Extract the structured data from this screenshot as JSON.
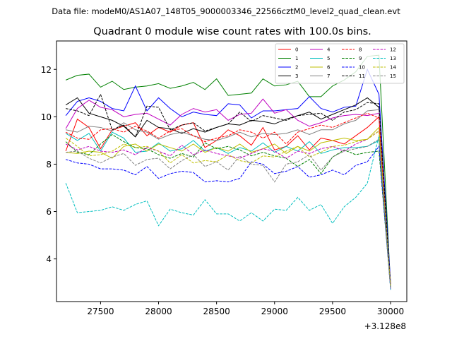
{
  "figure": {
    "suptitle": "Data file: modeM0/AS1A07_148T05_9000003346_22566cztM0_level2_quad_clean.evt",
    "x_offset_label": "+3.128e8"
  },
  "chart_data": {
    "type": "line",
    "title": "Quadrant 0 module wise count rates with 100.0s bins.",
    "xlabel": "",
    "ylabel": "",
    "x_offset": 312800000,
    "xlim": [
      27120,
      30140
    ],
    "ylim": [
      2.2,
      13.2
    ],
    "x_ticks": [
      27500,
      28000,
      28500,
      29000,
      29500,
      30000
    ],
    "x_tick_labels": [
      "27500",
      "28000",
      "28500",
      "29000",
      "29500",
      "30000"
    ],
    "y_ticks": [
      4,
      6,
      8,
      10,
      12
    ],
    "y_tick_labels": [
      "4",
      "6",
      "8",
      "10",
      "12"
    ],
    "grid": false,
    "legend_position": "top-right",
    "x": [
      27200,
      27300,
      27400,
      27500,
      27600,
      27700,
      27800,
      27900,
      28000,
      28100,
      28200,
      28300,
      28400,
      28500,
      28600,
      28700,
      28800,
      28900,
      29000,
      29100,
      29200,
      29300,
      29400,
      29500,
      29600,
      29700,
      29800,
      29900,
      30000
    ],
    "series": [
      {
        "name": "0",
        "color": "#ff0000",
        "dash": "solid",
        "values": [
          8.55,
          9.9,
          9.55,
          8.65,
          9.45,
          9.6,
          9.75,
          9.2,
          9.55,
          9.35,
          9.65,
          9.75,
          8.7,
          9.0,
          9.45,
          9.2,
          8.8,
          9.55,
          8.6,
          8.75,
          9.2,
          8.6,
          9.1,
          9.0,
          8.85,
          9.2,
          9.55,
          10.0,
          2.9
        ]
      },
      {
        "name": "1",
        "color": "#008000",
        "dash": "solid",
        "values": [
          11.55,
          11.75,
          11.8,
          11.25,
          11.5,
          11.15,
          11.25,
          11.3,
          11.4,
          11.2,
          11.3,
          11.45,
          11.15,
          11.6,
          10.9,
          10.95,
          11.0,
          11.6,
          11.3,
          11.35,
          11.5,
          10.85,
          10.85,
          11.3,
          11.55,
          11.9,
          12.55,
          12.6,
          2.85
        ]
      },
      {
        "name": "2",
        "color": "#0000ff",
        "dash": "solid",
        "values": [
          10.05,
          10.65,
          10.8,
          10.65,
          10.35,
          10.25,
          11.3,
          10.25,
          10.8,
          10.35,
          10.0,
          10.2,
          10.1,
          10.05,
          10.55,
          10.5,
          9.95,
          10.25,
          10.25,
          10.3,
          10.35,
          10.85,
          10.35,
          10.2,
          10.4,
          10.45,
          12.0,
          10.95,
          3.0
        ]
      },
      {
        "name": "3",
        "color": "#000000",
        "dash": "solid",
        "values": [
          10.5,
          10.8,
          10.15,
          10.0,
          9.85,
          9.6,
          9.15,
          9.85,
          9.55,
          9.5,
          9.3,
          9.5,
          9.35,
          9.55,
          9.7,
          9.65,
          9.85,
          9.8,
          9.7,
          9.9,
          10.05,
          10.2,
          9.9,
          10.1,
          10.3,
          10.5,
          10.8,
          10.4,
          2.8
        ]
      },
      {
        "name": "4",
        "color": "#bf00bf",
        "dash": "solid",
        "values": [
          9.5,
          10.35,
          10.7,
          10.4,
          10.3,
          10.0,
          10.1,
          10.15,
          9.9,
          9.65,
          10.1,
          10.35,
          10.2,
          10.3,
          9.85,
          10.1,
          10.15,
          10.75,
          10.15,
          10.3,
          9.85,
          9.6,
          9.75,
          9.95,
          10.05,
          10.1,
          10.05,
          10.15,
          2.85
        ]
      },
      {
        "name": "5",
        "color": "#00bfbf",
        "dash": "solid",
        "values": [
          9.3,
          9.0,
          9.3,
          8.55,
          9.35,
          9.1,
          8.5,
          8.55,
          8.9,
          8.55,
          8.65,
          9.0,
          8.55,
          8.7,
          8.45,
          8.7,
          8.55,
          8.9,
          8.5,
          8.75,
          8.55,
          8.95,
          8.45,
          8.6,
          8.7,
          8.7,
          8.75,
          9.0,
          2.85
        ]
      },
      {
        "name": "6",
        "color": "#bfbf00",
        "dash": "solid",
        "values": [
          8.5,
          8.45,
          8.55,
          8.5,
          8.25,
          8.75,
          8.85,
          8.55,
          8.85,
          8.7,
          8.55,
          8.85,
          8.5,
          8.7,
          8.55,
          8.85,
          8.5,
          8.65,
          8.85,
          8.45,
          8.75,
          8.55,
          8.9,
          9.0,
          9.1,
          9.0,
          9.05,
          9.55,
          2.9
        ]
      },
      {
        "name": "7",
        "color": "#808080",
        "dash": "solid",
        "values": [
          9.45,
          9.35,
          9.6,
          9.55,
          9.4,
          9.75,
          9.45,
          9.35,
          9.05,
          9.25,
          9.35,
          9.2,
          9.05,
          9.0,
          9.15,
          9.35,
          9.15,
          9.3,
          9.25,
          9.3,
          9.45,
          9.25,
          9.45,
          9.45,
          9.7,
          9.85,
          10.25,
          10.3,
          2.8
        ]
      },
      {
        "name": "8",
        "color": "#ff0000",
        "dash": "dashed",
        "values": [
          9.35,
          9.1,
          9.05,
          9.45,
          9.5,
          9.35,
          9.6,
          9.4,
          9.1,
          9.4,
          9.5,
          9.2,
          8.95,
          9.1,
          9.2,
          9.45,
          9.35,
          9.1,
          9.35,
          8.85,
          9.35,
          9.5,
          9.65,
          9.55,
          9.75,
          9.95,
          10.15,
          9.95,
          2.85
        ]
      },
      {
        "name": "9",
        "color": "#008000",
        "dash": "dashed",
        "values": [
          8.95,
          8.5,
          8.4,
          8.85,
          9.25,
          8.95,
          8.7,
          8.65,
          8.4,
          8.25,
          8.45,
          8.3,
          8.9,
          8.65,
          8.75,
          8.6,
          8.35,
          8.5,
          8.35,
          8.25,
          7.9,
          8.2,
          7.6,
          8.3,
          8.6,
          8.4,
          8.5,
          8.55,
          2.8
        ]
      },
      {
        "name": "10",
        "color": "#0000ff",
        "dash": "dashed",
        "values": [
          8.2,
          8.05,
          8.0,
          7.8,
          7.8,
          7.75,
          7.55,
          7.9,
          7.4,
          7.6,
          7.7,
          7.65,
          7.25,
          7.3,
          7.25,
          7.4,
          8.1,
          8.0,
          7.6,
          7.7,
          7.9,
          7.45,
          7.55,
          7.75,
          7.55,
          7.95,
          8.1,
          8.75,
          2.75
        ]
      },
      {
        "name": "11",
        "color": "#000000",
        "dash": "dashed",
        "values": [
          10.35,
          10.25,
          10.05,
          10.95,
          9.45,
          9.65,
          9.15,
          10.45,
          10.4,
          9.45,
          9.65,
          9.75,
          9.4,
          9.55,
          9.7,
          10.2,
          9.8,
          10.05,
          9.95,
          9.85,
          10.05,
          10.1,
          10.15,
          9.85,
          10.2,
          10.3,
          10.6,
          10.55,
          2.8
        ]
      },
      {
        "name": "12",
        "color": "#bf00bf",
        "dash": "dashed",
        "values": [
          8.85,
          8.6,
          8.75,
          8.55,
          8.5,
          8.6,
          8.4,
          8.7,
          8.55,
          8.35,
          8.8,
          8.4,
          8.6,
          8.45,
          8.35,
          8.25,
          8.45,
          8.65,
          8.55,
          8.25,
          8.55,
          8.45,
          8.65,
          8.75,
          8.55,
          8.85,
          9.05,
          9.4,
          2.7
        ]
      },
      {
        "name": "13",
        "color": "#00bfbf",
        "dash": "dashed",
        "values": [
          7.2,
          5.95,
          6.0,
          6.05,
          6.2,
          6.05,
          6.3,
          6.45,
          5.4,
          6.1,
          5.95,
          5.85,
          6.5,
          5.9,
          5.9,
          5.6,
          5.95,
          5.6,
          6.1,
          6.05,
          6.6,
          6.05,
          6.3,
          5.5,
          6.2,
          6.6,
          7.2,
          9.2,
          2.7
        ]
      },
      {
        "name": "14",
        "color": "#bfbf00",
        "dash": "dashed",
        "values": [
          9.1,
          8.75,
          8.35,
          8.4,
          8.55,
          8.85,
          8.7,
          8.75,
          8.55,
          8.05,
          8.4,
          8.05,
          8.15,
          8.1,
          8.4,
          8.15,
          8.05,
          8.35,
          8.3,
          8.55,
          8.75,
          8.3,
          8.5,
          8.75,
          8.8,
          8.95,
          9.05,
          9.4,
          2.85
        ]
      },
      {
        "name": "15",
        "color": "#808080",
        "dash": "dashed",
        "values": [
          8.5,
          8.55,
          8.25,
          8.05,
          8.3,
          8.45,
          7.95,
          8.2,
          8.25,
          7.8,
          8.15,
          8.4,
          7.9,
          8.1,
          7.75,
          8.35,
          8.0,
          7.95,
          7.25,
          8.0,
          8.1,
          8.4,
          7.75,
          8.3,
          8.55,
          8.65,
          8.75,
          9.05,
          2.75
        ]
      }
    ]
  }
}
